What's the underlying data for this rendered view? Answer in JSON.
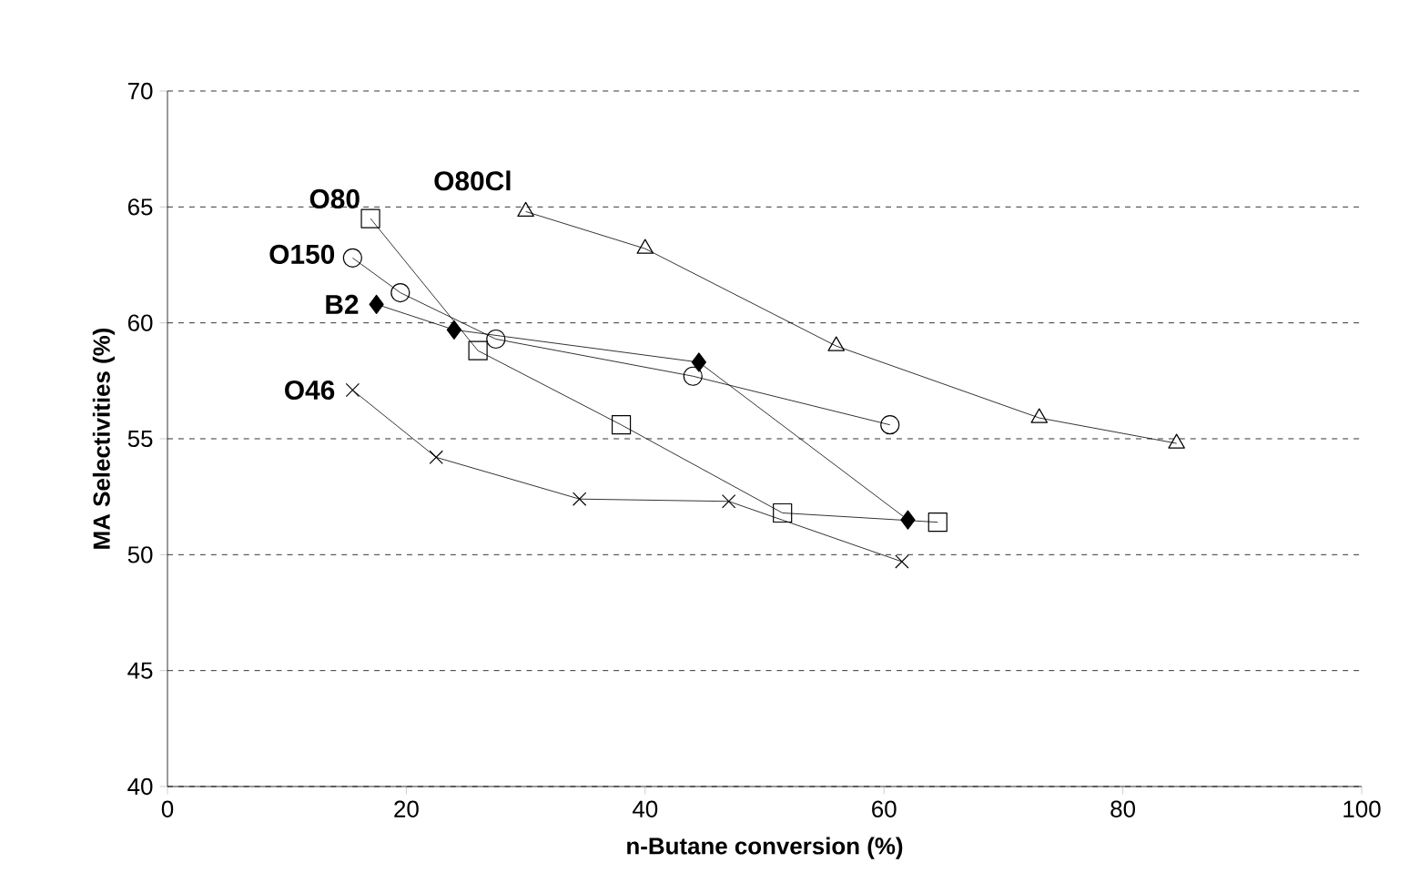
{
  "chart_data": {
    "type": "line",
    "xlabel": "n-Butane conversion (%)",
    "ylabel": "MA Selectivities (%)",
    "xlim": [
      0,
      100
    ],
    "xticks": [
      0,
      20,
      40,
      60,
      80,
      100
    ],
    "ylim": [
      40,
      70
    ],
    "yticks": [
      40,
      45,
      50,
      55,
      60,
      65,
      70
    ],
    "grid": "y",
    "series": [
      {
        "name": "O80",
        "color": "#000000",
        "marker": "square",
        "x": [
          17,
          26,
          38,
          51.5,
          64.5
        ],
        "values": [
          64.5,
          58.8,
          55.6,
          51.8,
          51.4
        ]
      },
      {
        "name": "O150",
        "color": "#000000",
        "marker": "circle",
        "x": [
          15.5,
          19.5,
          27.5,
          44,
          60.5
        ],
        "values": [
          62.8,
          61.3,
          59.3,
          57.7,
          55.6
        ]
      },
      {
        "name": "B2",
        "color": "#000000",
        "marker": "diamond",
        "x": [
          17.5,
          24,
          44.5,
          62
        ],
        "values": [
          60.8,
          59.7,
          58.3,
          51.5
        ]
      },
      {
        "name": "O46",
        "color": "#000000",
        "marker": "cross",
        "x": [
          15.5,
          22.5,
          34.5,
          47,
          61.5
        ],
        "values": [
          57.1,
          54.2,
          52.4,
          52.3,
          49.7
        ]
      },
      {
        "name": "O80Cl",
        "color": "#000000",
        "marker": "triangle",
        "x": [
          30,
          40,
          56,
          73,
          84.5
        ],
        "values": [
          64.8,
          63.2,
          59,
          55.9,
          54.8
        ]
      }
    ]
  }
}
